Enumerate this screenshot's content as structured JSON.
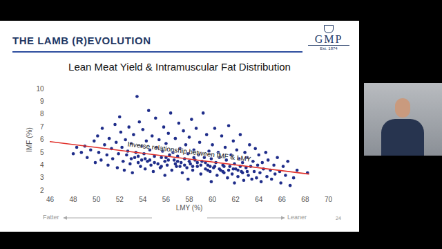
{
  "slide": {
    "header": "THE LAMB (R)EVOLUTION",
    "logo": "GMP",
    "logo_subtitle": "Est. 1874",
    "page_number": "24"
  },
  "chart_data": {
    "type": "scatter",
    "title": "Lean Meat Yield & Intramuscular Fat Distribution",
    "x_label": "LMY (%)",
    "y_label": "IMF (%)",
    "x_direction_labels": {
      "left": "Fatter",
      "right": "Leaner"
    },
    "xlim": [
      46,
      70
    ],
    "xticks": [
      46,
      48,
      50,
      52,
      54,
      56,
      58,
      60,
      62,
      64,
      66,
      68,
      70
    ],
    "ylim": [
      2,
      10
    ],
    "yticks": [
      2,
      3,
      4,
      5,
      6,
      7,
      8,
      9,
      10
    ],
    "grid": false,
    "color": "#1f2d8a",
    "marker": "circle",
    "x": [
      48.0,
      48.3,
      48.7,
      49.0,
      49.2,
      49.5,
      49.8,
      49.9,
      50.1,
      50.2,
      50.4,
      50.5,
      50.7,
      50.9,
      51.0,
      51.1,
      51.3,
      51.4,
      51.6,
      51.7,
      51.8,
      51.9,
      52.0,
      52.1,
      52.2,
      52.3,
      52.4,
      52.5,
      52.6,
      52.7,
      52.8,
      52.9,
      53.0,
      53.1,
      53.2,
      53.3,
      53.4,
      53.5,
      53.6,
      53.7,
      53.8,
      53.9,
      53.9,
      54.0,
      54.1,
      54.2,
      54.3,
      54.4,
      54.5,
      54.6,
      54.7,
      54.8,
      54.9,
      55.0,
      55.1,
      55.2,
      55.3,
      55.4,
      55.5,
      55.6,
      55.7,
      55.8,
      55.9,
      55.9,
      56.0,
      56.1,
      56.2,
      56.3,
      56.4,
      56.5,
      56.6,
      56.7,
      56.8,
      56.9,
      57.0,
      57.1,
      57.2,
      57.3,
      57.4,
      57.5,
      57.6,
      57.7,
      57.8,
      57.9,
      57.9,
      58.0,
      58.1,
      58.2,
      58.3,
      58.4,
      58.5,
      58.6,
      58.7,
      58.8,
      58.9,
      59.0,
      59.1,
      59.2,
      59.3,
      59.4,
      59.5,
      59.6,
      59.7,
      59.8,
      59.9,
      59.9,
      60.0,
      60.1,
      60.2,
      60.3,
      60.4,
      60.5,
      60.6,
      60.7,
      60.8,
      60.9,
      61.0,
      61.1,
      61.2,
      61.3,
      61.4,
      61.5,
      61.6,
      61.7,
      61.8,
      61.9,
      61.9,
      62.0,
      62.1,
      62.2,
      62.3,
      62.4,
      62.5,
      62.6,
      62.7,
      62.8,
      62.9,
      63.0,
      63.1,
      63.2,
      63.3,
      63.4,
      63.5,
      63.6,
      63.7,
      63.8,
      63.9,
      64.0,
      64.1,
      64.2,
      64.3,
      64.4,
      64.6,
      64.7,
      64.8,
      65.0,
      65.1,
      65.3,
      65.4,
      65.6,
      65.8,
      65.9,
      66.1,
      66.3,
      66.5,
      66.7,
      67.0,
      67.3,
      68.2,
      54.2,
      55.0,
      55.6,
      56.2,
      56.8,
      57.2,
      57.6,
      58.0,
      58.3,
      58.7,
      59.0,
      59.4,
      59.8,
      60.2,
      60.6,
      61.0,
      61.4,
      61.8,
      62.2,
      62.6,
      63.0,
      53.0,
      53.6,
      54.6,
      56.0,
      57.0,
      58.4,
      59.6,
      60.9,
      62.4
    ],
    "values": [
      4.9,
      5.4,
      5.0,
      5.5,
      4.6,
      5.2,
      5.9,
      4.2,
      6.3,
      5.0,
      4.4,
      6.9,
      5.6,
      4.8,
      4.0,
      6.1,
      5.3,
      4.5,
      7.2,
      5.8,
      3.8,
      4.9,
      7.8,
      6.6,
      5.4,
      4.3,
      3.6,
      6.0,
      4.8,
      5.1,
      7.0,
      4.1,
      5.7,
      3.4,
      6.4,
      4.6,
      5.0,
      9.4,
      4.2,
      7.4,
      3.9,
      5.5,
      4.4,
      6.8,
      4.9,
      3.7,
      5.9,
      4.3,
      8.3,
      5.2,
      4.0,
      6.3,
      3.5,
      4.7,
      7.7,
      5.4,
      4.1,
      6.0,
      3.8,
      4.6,
      5.1,
      7.0,
      4.3,
      3.2,
      5.7,
      4.0,
      6.5,
      4.8,
      8.1,
      3.6,
      5.0,
      4.4,
      6.1,
      3.9,
      4.7,
      7.3,
      5.3,
      4.2,
      3.4,
      6.7,
      4.5,
      5.6,
      3.8,
      4.9,
      2.9,
      6.2,
      4.1,
      7.6,
      3.6,
      5.2,
      4.4,
      6.9,
      3.9,
      4.8,
      5.8,
      3.3,
      4.3,
      8.1,
      4.6,
      3.7,
      6.4,
      4.0,
      5.1,
      3.5,
      4.5,
      2.7,
      5.6,
      3.8,
      6.9,
      4.2,
      3.2,
      5.0,
      4.6,
      3.6,
      6.3,
      4.0,
      3.4,
      5.4,
      4.4,
      3.0,
      7.1,
      3.9,
      4.8,
      3.3,
      5.9,
      4.1,
      2.6,
      3.7,
      5.2,
      3.1,
      4.5,
      6.4,
      3.5,
      4.2,
      2.8,
      5.0,
      3.8,
      4.6,
      3.2,
      5.6,
      3.9,
      2.9,
      4.3,
      3.5,
      5.3,
      3.0,
      4.0,
      4.8,
      3.4,
      2.7,
      4.2,
      3.7,
      5.0,
      3.1,
      4.4,
      3.6,
      2.9,
      4.0,
      3.3,
      4.6,
      3.5,
      2.6,
      3.9,
      3.2,
      4.3,
      2.4,
      3.0,
      3.6,
      3.4,
      4.5,
      4.2,
      3.9,
      4.4,
      4.1,
      3.9,
      4.0,
      4.3,
      3.9,
      4.2,
      4.0,
      4.2,
      3.9,
      3.9,
      3.7,
      3.9,
      3.6,
      3.7,
      3.6,
      3.4,
      3.5,
      4.5,
      4.7,
      4.4,
      4.6,
      4.3,
      4.6,
      3.6,
      3.5,
      3.9
    ],
    "trend_line": {
      "x": [
        46,
        68.3
      ],
      "values": [
        5.85,
        3.3
      ],
      "color": "#e0302a"
    },
    "annotations": [
      {
        "text": "Inverse relationship between IMF & LMY",
        "x": 58,
        "y": 5.05
      }
    ]
  }
}
